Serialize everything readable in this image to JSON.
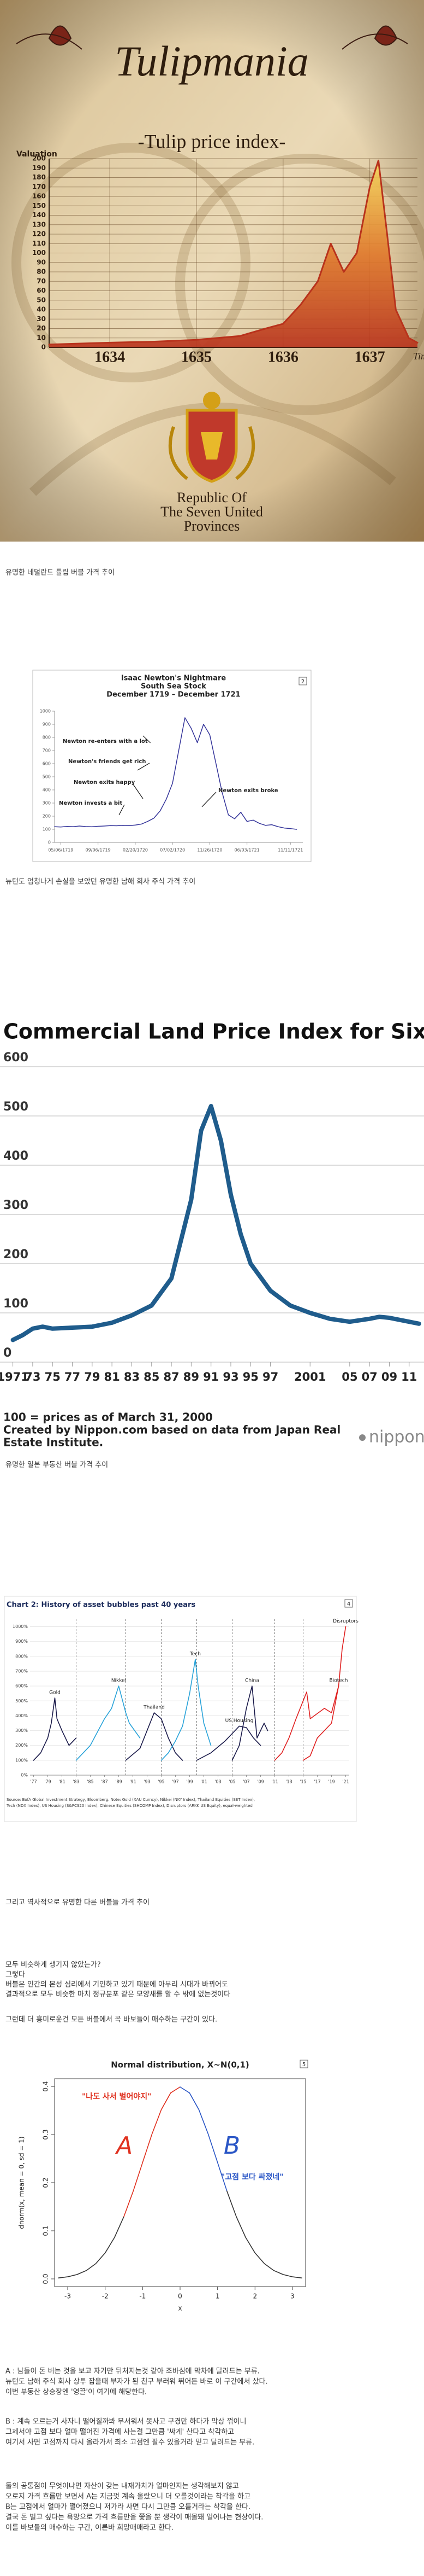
{
  "chart_data": [
    {
      "type": "line",
      "title": "Tulipmania",
      "subtitle": "-Tulip price index-",
      "y_label": "Valuation",
      "x_label": "Time",
      "footer": [
        "Republic Of",
        "The Seven United",
        "Provinces"
      ],
      "x": [
        1633.3,
        1634,
        1634.5,
        1635,
        1635.5,
        1635.8,
        1636,
        1636.2,
        1636.4,
        1636.55,
        1636.7,
        1636.85,
        1637,
        1637.1,
        1637.2,
        1637.3,
        1637.45,
        1637.55
      ],
      "values": [
        3,
        5,
        6,
        8,
        12,
        20,
        25,
        45,
        70,
        110,
        80,
        100,
        170,
        198,
        120,
        40,
        10,
        5
      ],
      "color": "#b8321c",
      "xlim": [
        1633.3,
        1637.55
      ],
      "ylim": [
        0,
        200
      ],
      "xticks": [
        1634,
        1635,
        1636,
        1637
      ],
      "yticks": [
        0,
        10,
        20,
        30,
        40,
        50,
        60,
        70,
        80,
        90,
        100,
        110,
        120,
        130,
        140,
        150,
        160,
        170,
        180,
        190,
        200
      ],
      "grid": true
    },
    {
      "type": "line",
      "title": "Isaac Newton's Nightmare",
      "subtitle": "South Sea Stock",
      "period": "December 1719 – December 1721",
      "badge": "2",
      "x": [
        0,
        1,
        2,
        3,
        4,
        5,
        6,
        7,
        8,
        9,
        10,
        11,
        12,
        13,
        14,
        15,
        16,
        17,
        18,
        19,
        20,
        21,
        22,
        23,
        24,
        25,
        26,
        27,
        28,
        29,
        30,
        31,
        32,
        33,
        34,
        35,
        36,
        37,
        38,
        39
      ],
      "values": [
        120,
        118,
        122,
        120,
        125,
        121,
        119,
        123,
        125,
        128,
        127,
        130,
        128,
        132,
        140,
        160,
        185,
        240,
        330,
        450,
        700,
        950,
        870,
        760,
        900,
        820,
        600,
        380,
        210,
        180,
        230,
        160,
        170,
        145,
        130,
        135,
        120,
        110,
        105,
        100
      ],
      "color": "#34349a",
      "xlim": [
        0,
        40
      ],
      "ylim": [
        0,
        1000
      ],
      "xticks": [
        {
          "value": 1,
          "label": "05/06/1719"
        },
        {
          "value": 7,
          "label": "09/06/1719"
        },
        {
          "value": 13,
          "label": "02/20/1720"
        },
        {
          "value": 19,
          "label": "07/02/1720"
        },
        {
          "value": 25,
          "label": "11/26/1720"
        },
        {
          "value": 31,
          "label": "06/03/1721"
        },
        {
          "value": 38,
          "label": "11/11/1721"
        }
      ],
      "yticks": [
        0,
        100,
        200,
        300,
        400,
        500,
        600,
        700,
        800,
        900,
        1000
      ],
      "annotations": [
        "Newton re-enters with a lot",
        "Newton's friends get rich",
        "Newton exits happy",
        "Newton invests a bit",
        "Newton exits broke"
      ]
    },
    {
      "type": "line",
      "title": "Commercial Land Price Index for Six Major Cities",
      "x": [
        1971,
        1972,
        1973,
        1974,
        1975,
        1977,
        1979,
        1981,
        1983,
        1985,
        1987,
        1989,
        1990,
        1991,
        1992,
        1993,
        1994,
        1995,
        1997,
        1999,
        2001,
        2003,
        2005,
        2007,
        2008,
        2009,
        2011,
        2012
      ],
      "values": [
        45,
        55,
        68,
        72,
        68,
        70,
        72,
        80,
        95,
        115,
        170,
        330,
        470,
        520,
        450,
        340,
        260,
        200,
        145,
        115,
        100,
        88,
        82,
        88,
        92,
        90,
        82,
        78
      ],
      "color": "#1f5c8c",
      "xlim": [
        1969.7,
        2012.5
      ],
      "ylim": [
        0,
        600
      ],
      "xticks": [
        1971,
        {
          "value": 1973,
          "label": "73"
        },
        {
          "value": 1975,
          "label": "75"
        },
        {
          "value": 1977,
          "label": "77"
        },
        {
          "value": 1979,
          "label": "79"
        },
        {
          "value": 1981,
          "label": "81"
        },
        {
          "value": 1983,
          "label": "83"
        },
        {
          "value": 1985,
          "label": "85"
        },
        {
          "value": 1987,
          "label": "87"
        },
        {
          "value": 1989,
          "label": "89"
        },
        {
          "value": 1991,
          "label": "91"
        },
        {
          "value": 1993,
          "label": "93"
        },
        {
          "value": 1995,
          "label": "95"
        },
        {
          "value": 1997,
          "label": "97"
        },
        2001,
        {
          "value": 2005,
          "label": "05"
        },
        {
          "value": 2007,
          "label": "07"
        },
        {
          "value": 2009,
          "label": "09"
        },
        {
          "value": 2011,
          "label": "11"
        }
      ],
      "yticks": [
        0,
        100,
        200,
        300,
        400,
        500,
        600
      ],
      "grid": true,
      "notes": [
        "100 = prices as of March 31, 2000",
        "Created by Nippon.com based on data from Japan Real",
        "Estate Institute."
      ],
      "logo": "nippon"
    },
    {
      "type": "line",
      "title": "Chart 2: History of asset bubbles past 40 years",
      "badge": "4",
      "series": [
        {
          "name": "Gold",
          "color": "#1a1a4a",
          "x": [
            1977,
            1978,
            1979,
            1979.5,
            1980,
            1980.3,
            1981,
            1982,
            1983
          ],
          "values": [
            100,
            150,
            250,
            350,
            520,
            380,
            300,
            200,
            250
          ]
        },
        {
          "name": "Nikkei",
          "color": "#29a3d9",
          "x": [
            1983,
            1985,
            1987,
            1988,
            1989,
            1990,
            1990.5,
            1992
          ],
          "values": [
            100,
            200,
            380,
            450,
            600,
            420,
            350,
            250
          ]
        },
        {
          "name": "Thailand",
          "color": "#1a1a4a",
          "x": [
            1990,
            1992,
            1993,
            1994,
            1995,
            1996,
            1997,
            1998
          ],
          "values": [
            100,
            180,
            300,
            420,
            380,
            250,
            150,
            100
          ]
        },
        {
          "name": "Tech",
          "color": "#29a3d9",
          "x": [
            1995,
            1996,
            1997,
            1998,
            1999,
            1999.8,
            2000.2,
            2001,
            2002
          ],
          "values": [
            100,
            150,
            230,
            330,
            550,
            780,
            600,
            350,
            200
          ]
        },
        {
          "name": "US Housing",
          "color": "#1a1a4a",
          "x": [
            2000,
            2002,
            2004,
            2005,
            2006,
            2007,
            2008,
            2009
          ],
          "values": [
            100,
            150,
            230,
            280,
            330,
            320,
            250,
            200
          ]
        },
        {
          "name": "China",
          "color": "#1a1a4a",
          "x": [
            2005,
            2006,
            2007,
            2007.8,
            2008.5,
            2009.5,
            2010
          ],
          "values": [
            100,
            200,
            450,
            600,
            250,
            350,
            300
          ]
        },
        {
          "name": "Biotech",
          "color": "#e02020",
          "x": [
            2011,
            2012,
            2013,
            2014,
            2015,
            2015.5,
            2016,
            2018,
            2019,
            2020
          ],
          "values": [
            100,
            150,
            250,
            380,
            500,
            560,
            380,
            450,
            420,
            600
          ]
        },
        {
          "name": "Disruptors",
          "color": "#e02020",
          "x": [
            2015,
            2016,
            2017,
            2018,
            2019,
            2020,
            2020.5,
            2021
          ],
          "values": [
            100,
            130,
            250,
            300,
            350,
            600,
            850,
            1000
          ]
        }
      ],
      "xlim": [
        1976.5,
        2021.5
      ],
      "ylim": [
        0,
        1050
      ],
      "xticks": [
        {
          "value": 1977,
          "label": "'77"
        },
        {
          "value": 1979,
          "label": "'79"
        },
        {
          "value": 1981,
          "label": "'81"
        },
        {
          "value": 1983,
          "label": "'83"
        },
        {
          "value": 1985,
          "label": "'85"
        },
        {
          "value": 1987,
          "label": "'87"
        },
        {
          "value": 1989,
          "label": "'89"
        },
        {
          "value": 1991,
          "label": "'91"
        },
        {
          "value": 1993,
          "label": "'93"
        },
        {
          "value": 1995,
          "label": "'95"
        },
        {
          "value": 1997,
          "label": "'97"
        },
        {
          "value": 1999,
          "label": "'99"
        },
        {
          "value": 2001,
          "label": "'01"
        },
        {
          "value": 2003,
          "label": "'03"
        },
        {
          "value": 2005,
          "label": "'05"
        },
        {
          "value": 2007,
          "label": "'07"
        },
        {
          "value": 2009,
          "label": "'09"
        },
        {
          "value": 2011,
          "label": "'11"
        },
        {
          "value": 2013,
          "label": "'13"
        },
        {
          "value": 2015,
          "label": "'15"
        },
        {
          "value": 2017,
          "label": "'17"
        },
        {
          "value": 2019,
          "label": "'19"
        },
        {
          "value": 2021,
          "label": "'21"
        }
      ],
      "yticks": [
        {
          "value": 0,
          "label": "0%"
        },
        {
          "value": 100,
          "label": "100%"
        },
        {
          "value": 200,
          "label": "200%"
        },
        {
          "value": 300,
          "label": "300%"
        },
        {
          "value": 400,
          "label": "400%"
        },
        {
          "value": 500,
          "label": "500%"
        },
        {
          "value": 600,
          "label": "600%"
        },
        {
          "value": 700,
          "label": "700%"
        },
        {
          "value": 800,
          "label": "800%"
        },
        {
          "value": 900,
          "label": "900%"
        },
        {
          "value": 1000,
          "label": "1000%"
        }
      ],
      "grid": true,
      "source": [
        "Source: BofA Global Investment Strategy, Bloomberg. Note: Gold (XAU Curncy), Nikkei (NKY Index), Thailand Equities (SET Index),",
        "Tech (NDX Index), US Housing (S&PCS20 Index), Chinese Equities (SHCOMP Index), Disruptors (ARKK US Equity), equal-weighted"
      ]
    },
    {
      "type": "line",
      "title": "Normal distribution, X~N(0,1)",
      "badge": "5",
      "y_label": "dnorm(x, mean = 0, sd = 1)",
      "x_label": "x",
      "series": [
        {
          "color": "#333333",
          "x": [
            -3.25,
            -3,
            -2.75,
            -2.5,
            -2.25,
            -2,
            -1.75,
            -1.5
          ],
          "values": [
            0.002,
            0.0044,
            0.0091,
            0.0175,
            0.0317,
            0.054,
            0.0863,
            0.1295
          ]
        },
        {
          "name": "A",
          "color": "#e0301e",
          "x": [
            -1.5,
            -1.25,
            -1,
            -0.75,
            -0.5,
            -0.25,
            0
          ],
          "values": [
            0.1295,
            0.1826,
            0.242,
            0.3011,
            0.3521,
            0.3867,
            0.3989
          ]
        },
        {
          "name": "B",
          "color": "#2a56c6",
          "x": [
            0,
            0.25,
            0.5,
            0.75,
            1,
            1.25
          ],
          "values": [
            0.3989,
            0.3867,
            0.3521,
            0.3011,
            0.242,
            0.1826
          ]
        },
        {
          "color": "#333333",
          "x": [
            1.25,
            1.5,
            1.75,
            2,
            2.25,
            2.5,
            2.75,
            3,
            3.25
          ],
          "values": [
            0.1826,
            0.1295,
            0.0863,
            0.054,
            0.0317,
            0.0175,
            0.0091,
            0.0044,
            0.002
          ]
        }
      ],
      "xlim": [
        -3.35,
        3.35
      ],
      "ylim": [
        -0.016,
        0.416
      ],
      "xticks": [
        -3,
        -2,
        -1,
        0,
        1,
        2,
        3
      ],
      "yticks": [
        {
          "value": 0,
          "label": "0.0"
        },
        {
          "value": 0.1,
          "label": "0.1"
        },
        {
          "value": 0.2,
          "label": "0.2"
        },
        {
          "value": 0.3,
          "label": "0.3"
        },
        {
          "value": 0.4,
          "label": "0.4"
        }
      ],
      "annotations": [
        "\"나도 사서 벌어야지\"",
        "\"고점 보다 싸졌네\""
      ]
    }
  ],
  "captions": [
    "유명한 네덜란드 튤립 버블 가격 추이",
    "뉴턴도 엄청나게 손실을 보았던 유명한 남해 회사 주식 가격 추이",
    "유명한 일본 부동산 버블 가격 추이",
    "그리고 역사적으로 유명한 다른 버블들 가격 추이"
  ],
  "body": {
    "intro": [
      "모두 비슷하게 생기지 않았는가?",
      "그렇다",
      "버블은 인간의 본성 심리에서 기인하고 있기 때문에 아무리 시대가 바뀌어도",
      "결과적으로 모두 비슷한 마치 정규분포 같은 모양새를 할 수 밖에 없는것이다"
    ],
    "lead": "그런데 더 흥미로운건 모든 버블에서 꼭 바보들이 매수하는 구간이 있다.",
    "a": [
      "A : 남들이 돈 버는 것을 보고 자기만 뒤처지는것 같아 조바심에 막차에 달려드는 부류.",
      "뉴턴도 남해 주식 회사 상투 잡을때 부자가 된 친구 부러워 뛰어든 바로 이 구간에서 샀다.",
      "이번 부동산 상승장엔 '영끌'이 여기에 해당한다."
    ],
    "b": [
      "B : 계속 오르는거 사자니 떨어질까봐 무서워서 못사고 구경만 하다가 막상 꺾이니",
      "그제서야 고점 보다 얼마 떨어진 가격에 사는걸 그만큼 '싸게' 산다고 착각하고",
      "여기서 사면 고점까지 다시 올라가서 최소 고점엔 팔수 있을거라 믿고 달려드는 부류."
    ],
    "closing": [
      "둘의 공통점이 무엇이냐면 자산이 갖는 내재가치가 얼마인지는 생각해보지 않고",
      "오로지 가격 흐름만 보면서 A는 지금껏 계속 올랐으니 더 오를것이라는 착각을 하고",
      "B는 고점에서 얼마가 떨어졌으니 저가라 사면 다시 그만큼 오를거라는 착각을 한다.",
      "결국 돈 벌고 싶다는 욕망으로 가격 흐름만을 쫓을 뿐 생각이 매몰돼 일어나는 현상이다.",
      "이를 바보들의 매수하는 구간, 이른바 희망매매라고 한다."
    ]
  }
}
